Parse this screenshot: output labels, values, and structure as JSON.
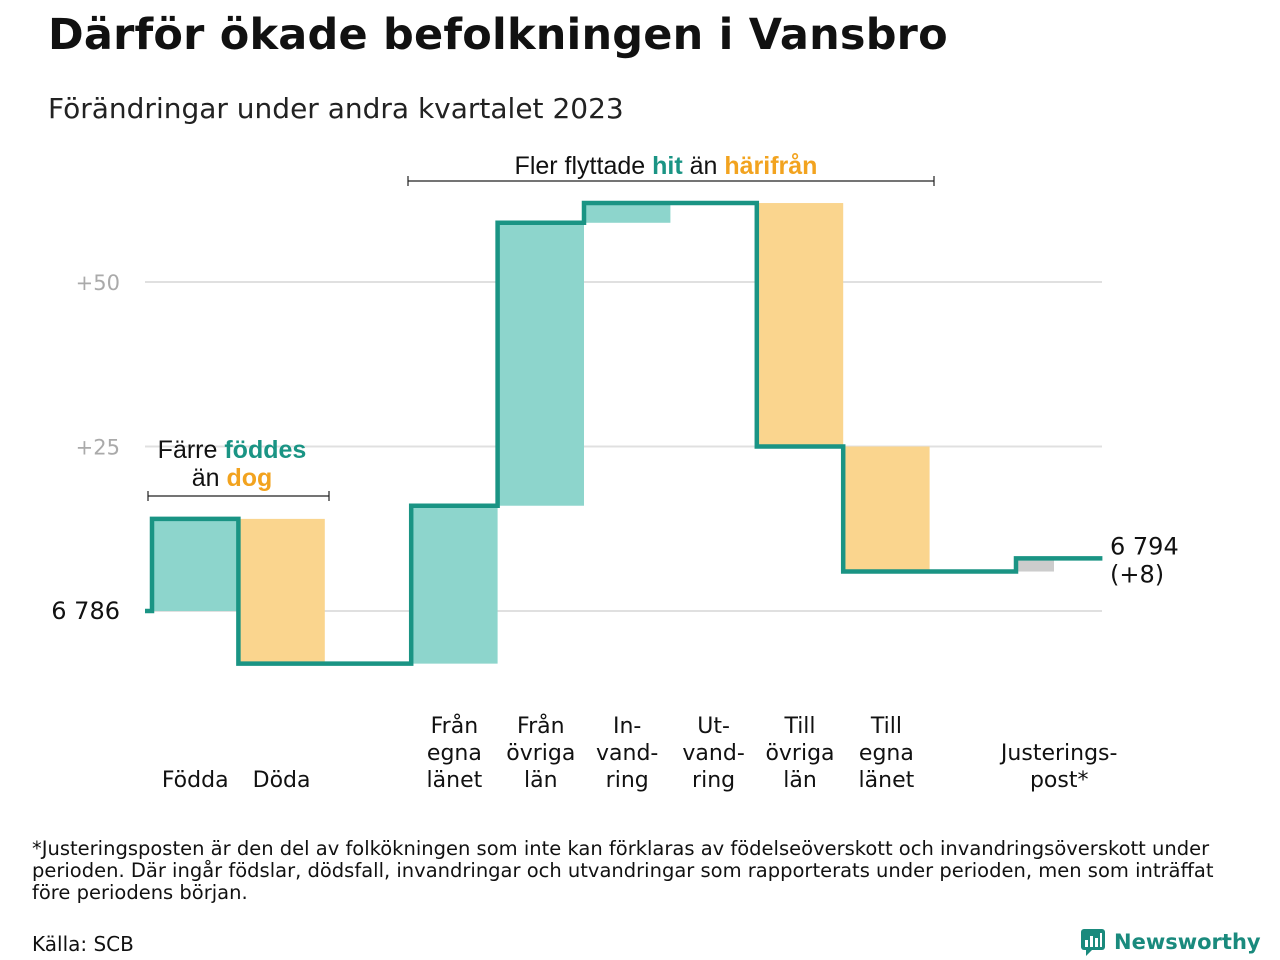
{
  "title": "Därför ökade befolkningen i Vansbro",
  "subtitle": "Förändringar under andra kvartalet 2023",
  "colors": {
    "increase": "#8dd5cc",
    "decrease": "#fad58e",
    "adjustment": "#cccccc",
    "line": "#1a9484",
    "teal_text": "#1a9484",
    "orange_text": "#f2a31f",
    "grid": "#e0e0e0"
  },
  "chart_data": {
    "type": "waterfall",
    "start_value": 6786,
    "start_label": "6  786",
    "end_label": "6 794",
    "end_change_label": "(+8)",
    "y_ticks": [
      {
        "value": 50,
        "label": "+50"
      },
      {
        "value": 25,
        "label": "+25"
      },
      {
        "value": 0,
        "label": ""
      }
    ],
    "ylim": [
      -8,
      62
    ],
    "steps": [
      {
        "label_lines": [
          "Födda"
        ],
        "change": 14,
        "kind": "increase"
      },
      {
        "label_lines": [
          "Döda"
        ],
        "change": -22,
        "kind": "decrease"
      },
      {
        "label_lines": [],
        "change": 0,
        "kind": "spacer"
      },
      {
        "label_lines": [
          "Från",
          "egna",
          "länet"
        ],
        "change": 24,
        "kind": "increase"
      },
      {
        "label_lines": [
          "Från",
          "övriga",
          "län"
        ],
        "change": 43,
        "kind": "increase"
      },
      {
        "label_lines": [
          "In-",
          "vand-",
          "ring"
        ],
        "change": 3,
        "kind": "increase"
      },
      {
        "label_lines": [
          "Ut-",
          "vand-",
          "ring"
        ],
        "change": 0,
        "kind": "decrease"
      },
      {
        "label_lines": [
          "Till",
          "övriga",
          "län"
        ],
        "change": -37,
        "kind": "decrease"
      },
      {
        "label_lines": [
          "Till",
          "egna",
          "länet"
        ],
        "change": -19,
        "kind": "decrease"
      },
      {
        "label_lines": [],
        "change": 0,
        "kind": "spacer"
      },
      {
        "label_lines": [
          "Justerings-",
          "post*"
        ],
        "change": 2,
        "kind": "adjustment"
      }
    ],
    "annotations": [
      {
        "parts": [
          {
            "text": "Färre ",
            "style": "plain"
          },
          {
            "text": "föddes",
            "style": "teal"
          }
        ],
        "line2": [
          {
            "text": "än ",
            "style": "plain"
          },
          {
            "text": "dog",
            "style": "orange"
          }
        ]
      },
      {
        "parts": [
          {
            "text": "Fler flyttade ",
            "style": "plain"
          },
          {
            "text": "hit",
            "style": "teal"
          },
          {
            "text": " än ",
            "style": "plain"
          },
          {
            "text": "härifrån",
            "style": "orange"
          }
        ]
      }
    ]
  },
  "footnote": "*Justeringsposten är den del av folkökningen som inte kan förklaras av födelseöverskott och invandringsöverskott under perioden. Där ingår födslar, dödsfall, invandringar och utvandringar som rapporterats under perioden, men som inträffat före periodens början.",
  "source": "Källa: SCB",
  "brand": "Newsworthy",
  "brand_icon": "newsworthy-logo-icon"
}
